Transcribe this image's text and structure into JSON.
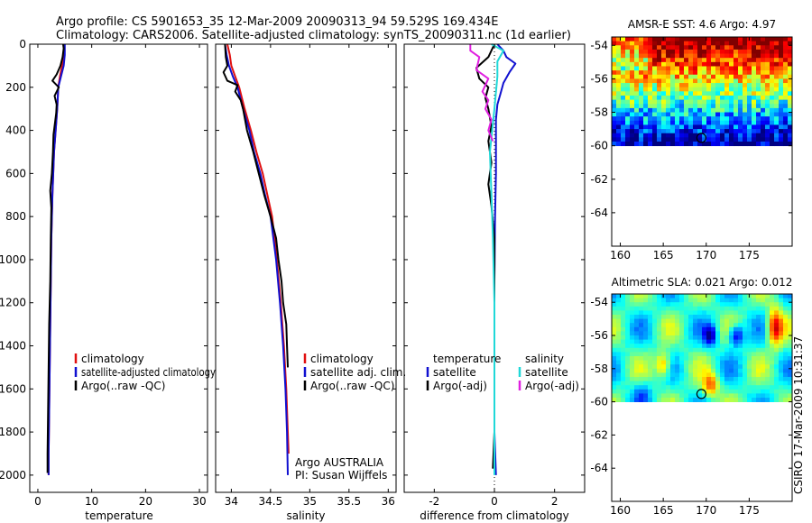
{
  "header": {
    "line1": "Argo profile: CS 5901653_35 12-Mar-2009 20090313_94 59.529S 169.434E",
    "line2": "Climatology: CARS2006. Satellite-adjusted climatology: synTS_20090311.nc (1d earlier)"
  },
  "credit": {
    "stamp": "CSIRO 17-Mar-2009 10:31:37",
    "institution": "Argo AUSTRALIA",
    "pi": "PI: Susan Wijffels"
  },
  "colors": {
    "climatology": "#e01010",
    "satellite": "#1010d0",
    "argo": "#000000",
    "salinity_satellite": "#20d8d8",
    "salinity_argo": "#e020e0"
  },
  "chart_data": [
    {
      "id": "temperature",
      "type": "line",
      "xlabel": "temperature",
      "xlim": [
        -1.5,
        31.5
      ],
      "ylim": [
        2080,
        0
      ],
      "xticks": [
        0,
        10,
        20,
        30
      ],
      "yticks": [
        0,
        200,
        400,
        600,
        800,
        1000,
        1200,
        1400,
        1600,
        1800,
        2000
      ],
      "legend": [
        {
          "label": "climatology",
          "color": "#e01010"
        },
        {
          "label": "satellite-adjusted climatology",
          "color": "#1010d0"
        },
        {
          "label": "Argo(..raw -QC)",
          "color": "#000000"
        }
      ],
      "series": [
        {
          "name": "climatology",
          "color": "#e01010",
          "points": [
            [
              4.9,
              0
            ],
            [
              4.8,
              50
            ],
            [
              4.5,
              100
            ],
            [
              4.1,
              150
            ],
            [
              3.8,
              200
            ],
            [
              3.6,
              300
            ],
            [
              3.3,
              400
            ],
            [
              3.0,
              500
            ],
            [
              2.7,
              700
            ],
            [
              2.5,
              900
            ],
            [
              2.4,
              1100
            ],
            [
              2.3,
              1300
            ],
            [
              2.2,
              1500
            ],
            [
              2.1,
              1700
            ],
            [
              2.0,
              1900
            ],
            [
              2.0,
              2000
            ]
          ]
        },
        {
          "name": "satellite",
          "color": "#1010d0",
          "points": [
            [
              5.0,
              0
            ],
            [
              5.0,
              50
            ],
            [
              4.8,
              100
            ],
            [
              4.3,
              150
            ],
            [
              3.8,
              200
            ],
            [
              3.6,
              300
            ],
            [
              3.3,
              400
            ],
            [
              3.0,
              500
            ],
            [
              2.7,
              700
            ],
            [
              2.5,
              900
            ],
            [
              2.4,
              1100
            ],
            [
              2.3,
              1300
            ],
            [
              2.2,
              1500
            ],
            [
              2.1,
              1700
            ],
            [
              2.0,
              1900
            ],
            [
              2.0,
              2000
            ]
          ]
        },
        {
          "name": "Argo",
          "color": "#000000",
          "points": [
            [
              4.7,
              0
            ],
            [
              4.8,
              20
            ],
            [
              4.6,
              60
            ],
            [
              4.2,
              100
            ],
            [
              3.5,
              140
            ],
            [
              2.7,
              170
            ],
            [
              3.9,
              200
            ],
            [
              3.1,
              240
            ],
            [
              3.5,
              280
            ],
            [
              3.4,
              320
            ],
            [
              3.2,
              360
            ],
            [
              2.9,
              420
            ],
            [
              2.8,
              500
            ],
            [
              2.6,
              600
            ],
            [
              2.3,
              680
            ],
            [
              2.5,
              760
            ],
            [
              2.4,
              900
            ],
            [
              2.3,
              1100
            ],
            [
              2.1,
              1300
            ],
            [
              2.0,
              1500
            ],
            [
              1.9,
              1700
            ],
            [
              1.8,
              1900
            ],
            [
              1.8,
              1990
            ]
          ]
        }
      ]
    },
    {
      "id": "salinity",
      "type": "line",
      "xlabel": "salinity",
      "xlim": [
        33.8,
        36.1
      ],
      "ylim": [
        2080,
        0
      ],
      "xticks": [
        34,
        34.5,
        35,
        35.5,
        36
      ],
      "legend": [
        {
          "label": "climatology",
          "color": "#e01010"
        },
        {
          "label": "satellite adj. clim.",
          "color": "#1010d0"
        },
        {
          "label": "Argo(..raw -QC)",
          "color": "#000000"
        }
      ],
      "series": [
        {
          "name": "climatology",
          "color": "#e01010",
          "points": [
            [
              33.95,
              0
            ],
            [
              33.98,
              50
            ],
            [
              34.0,
              100
            ],
            [
              34.05,
              150
            ],
            [
              34.1,
              200
            ],
            [
              34.17,
              300
            ],
            [
              34.25,
              400
            ],
            [
              34.32,
              500
            ],
            [
              34.4,
              600
            ],
            [
              34.46,
              700
            ],
            [
              34.52,
              800
            ],
            [
              34.58,
              1000
            ],
            [
              34.63,
              1200
            ],
            [
              34.67,
              1400
            ],
            [
              34.7,
              1600
            ],
            [
              34.72,
              1800
            ],
            [
              34.73,
              1900
            ]
          ]
        },
        {
          "name": "satellite",
          "color": "#1010d0",
          "points": [
            [
              33.92,
              0
            ],
            [
              33.94,
              50
            ],
            [
              33.97,
              100
            ],
            [
              34.02,
              150
            ],
            [
              34.08,
              200
            ],
            [
              34.15,
              300
            ],
            [
              34.23,
              400
            ],
            [
              34.29,
              500
            ],
            [
              34.37,
              600
            ],
            [
              34.43,
              700
            ],
            [
              34.5,
              800
            ],
            [
              34.57,
              1000
            ],
            [
              34.62,
              1200
            ],
            [
              34.66,
              1400
            ],
            [
              34.69,
              1600
            ],
            [
              34.71,
              1800
            ],
            [
              34.72,
              2000
            ]
          ]
        },
        {
          "name": "Argo",
          "color": "#000000",
          "points": [
            [
              33.92,
              0
            ],
            [
              33.93,
              60
            ],
            [
              33.95,
              100
            ],
            [
              33.9,
              130
            ],
            [
              33.95,
              170
            ],
            [
              34.08,
              190
            ],
            [
              34.05,
              220
            ],
            [
              34.12,
              260
            ],
            [
              34.15,
              300
            ],
            [
              34.2,
              400
            ],
            [
              34.28,
              500
            ],
            [
              34.35,
              600
            ],
            [
              34.42,
              700
            ],
            [
              34.5,
              800
            ],
            [
              34.57,
              900
            ],
            [
              34.6,
              1000
            ],
            [
              34.64,
              1100
            ],
            [
              34.66,
              1200
            ],
            [
              34.7,
              1300
            ],
            [
              34.71,
              1400
            ],
            [
              34.72,
              1500
            ]
          ]
        }
      ]
    },
    {
      "id": "difference",
      "type": "line",
      "xlabel": "difference from climatology",
      "xlim": [
        -3,
        3
      ],
      "ylim": [
        2080,
        0
      ],
      "xticks": [
        -2,
        0,
        2
      ],
      "legend_temperature": {
        "title": "temperature",
        "items": [
          {
            "label": "satellite",
            "color": "#1010d0"
          },
          {
            "label": "Argo(-adj)",
            "color": "#000000"
          }
        ]
      },
      "legend_salinity": {
        "title": "salinity",
        "items": [
          {
            "label": "satellite",
            "color": "#20d8d8"
          },
          {
            "label": "Argo(-adj)",
            "color": "#e020e0"
          }
        ]
      },
      "series": [
        {
          "name": "temperature satellite",
          "color": "#1010d0",
          "points": [
            [
              0.1,
              0
            ],
            [
              0.3,
              30
            ],
            [
              0.4,
              60
            ],
            [
              0.7,
              90
            ],
            [
              0.5,
              130
            ],
            [
              0.3,
              180
            ],
            [
              0.2,
              230
            ],
            [
              0.1,
              280
            ],
            [
              0.05,
              350
            ],
            [
              0.05,
              450
            ],
            [
              0.05,
              600
            ],
            [
              0.02,
              800
            ],
            [
              0.0,
              1100
            ],
            [
              0.0,
              1400
            ],
            [
              0.0,
              1800
            ],
            [
              0.05,
              2000
            ]
          ]
        },
        {
          "name": "temperature Argo",
          "color": "#000000",
          "points": [
            [
              0.0,
              0
            ],
            [
              -0.2,
              60
            ],
            [
              -0.6,
              110
            ],
            [
              -0.5,
              160
            ],
            [
              -0.2,
              200
            ],
            [
              -0.3,
              250
            ],
            [
              -0.2,
              300
            ],
            [
              -0.1,
              380
            ],
            [
              -0.2,
              450
            ],
            [
              -0.1,
              550
            ],
            [
              -0.2,
              650
            ],
            [
              -0.1,
              750
            ],
            [
              0.0,
              900
            ],
            [
              0.0,
              1200
            ],
            [
              0.0,
              1500
            ],
            [
              0.0,
              1800
            ],
            [
              -0.05,
              1970
            ]
          ]
        },
        {
          "name": "salinity satellite",
          "color": "#20d8d8",
          "points": [
            [
              -0.1,
              0
            ],
            [
              0.3,
              30
            ],
            [
              0.1,
              80
            ],
            [
              0.1,
              150
            ],
            [
              0.0,
              300
            ],
            [
              -0.15,
              500
            ],
            [
              -0.1,
              700
            ],
            [
              -0.05,
              900
            ],
            [
              0.0,
              1200
            ],
            [
              0.0,
              1500
            ],
            [
              0.0,
              2000
            ]
          ]
        },
        {
          "name": "salinity Argo",
          "color": "#e020e0",
          "points": [
            [
              -0.8,
              0
            ],
            [
              -0.8,
              30
            ],
            [
              -0.5,
              60
            ],
            [
              -0.6,
              120
            ],
            [
              -0.2,
              160
            ],
            [
              -0.4,
              220
            ],
            [
              -0.2,
              260
            ],
            [
              -0.3,
              300
            ],
            [
              -0.1,
              350
            ],
            [
              -0.2,
              400
            ],
            [
              -0.05,
              450
            ]
          ]
        }
      ]
    },
    {
      "id": "amsr_sst",
      "type": "heatmap",
      "title": "AMSR-E SST: 4.6 Argo: 4.97",
      "xlim": [
        159,
        180
      ],
      "ylim": [
        -66,
        -53.5
      ],
      "data_lat_range": [
        -60,
        -53.5
      ],
      "xticks": [
        160,
        165,
        170,
        175
      ],
      "yticks": [
        -54,
        -56,
        -58,
        -60,
        -62,
        -64
      ],
      "marker": {
        "lon": 169.434,
        "lat": -59.529
      }
    },
    {
      "id": "altimetric_sla",
      "type": "heatmap",
      "title": "Altimetric SLA: 0.021 Argo: 0.012",
      "xlim": [
        159,
        180
      ],
      "ylim": [
        -66,
        -53.5
      ],
      "data_lat_range": [
        -60,
        -53.5
      ],
      "xticks": [
        160,
        165,
        170,
        175
      ],
      "yticks": [
        -54,
        -56,
        -58,
        -60,
        -62,
        -64
      ],
      "marker": {
        "lon": 169.434,
        "lat": -59.529
      }
    }
  ]
}
